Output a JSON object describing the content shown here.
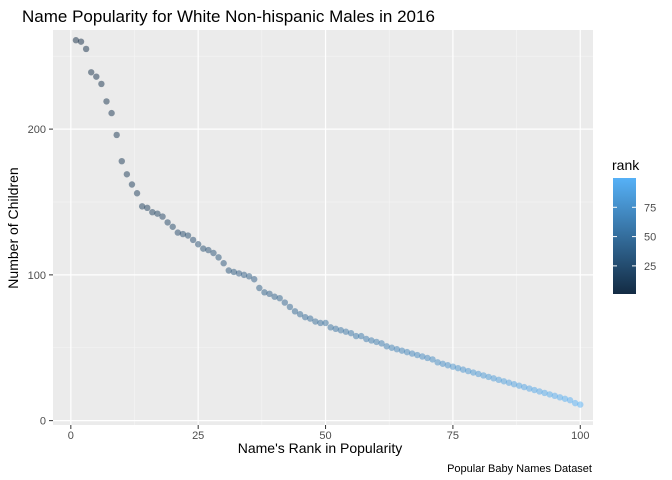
{
  "chart_data": {
    "type": "scatter",
    "title": "Name Popularity for White Non-hispanic Males in 2016",
    "xlabel": "Name's Rank in Popularity",
    "ylabel": "Number of Children",
    "caption": "Popular Baby Names Dataset",
    "xlim": [
      -3.5,
      102.5
    ],
    "ylim": [
      -3,
      268
    ],
    "x_ticks": [
      0,
      25,
      50,
      75,
      100
    ],
    "x_tick_labels": [
      "0",
      "25",
      "50",
      "75",
      "100"
    ],
    "y_ticks": [
      0,
      100,
      200
    ],
    "y_tick_labels": [
      "0",
      "100",
      "200"
    ],
    "grid": true,
    "color_scale": {
      "title": "rank",
      "low_color": "#132B43",
      "high_color": "#56B1F7",
      "domain": [
        1,
        100
      ],
      "breaks": [
        25,
        50,
        75
      ],
      "break_labels": [
        "25",
        "50",
        "75"
      ],
      "legend_position": "right"
    },
    "point_alpha": 0.5,
    "x": [
      1,
      2,
      3,
      4,
      5,
      6,
      7,
      8,
      9,
      10,
      11,
      12,
      13,
      14,
      15,
      16,
      17,
      18,
      19,
      20,
      21,
      22,
      23,
      24,
      25,
      26,
      27,
      28,
      29,
      30,
      31,
      32,
      33,
      34,
      35,
      36,
      37,
      38,
      39,
      40,
      41,
      42,
      43,
      44,
      45,
      46,
      47,
      48,
      49,
      50,
      51,
      52,
      53,
      54,
      55,
      56,
      57,
      58,
      59,
      60,
      61,
      62,
      63,
      64,
      65,
      66,
      67,
      68,
      69,
      70,
      71,
      72,
      73,
      74,
      75,
      76,
      77,
      78,
      79,
      80,
      81,
      82,
      83,
      84,
      85,
      86,
      87,
      88,
      89,
      90,
      91,
      92,
      93,
      94,
      95,
      96,
      97,
      98,
      99,
      100
    ],
    "y": [
      261,
      260,
      255,
      239,
      236,
      231,
      219,
      211,
      196,
      178,
      169,
      162,
      156,
      147,
      146,
      143,
      142,
      140,
      136,
      133,
      129,
      128,
      127,
      124,
      121,
      118,
      117,
      115,
      112,
      108,
      103,
      102,
      101,
      100,
      99,
      97,
      91,
      88,
      87,
      85,
      84,
      81,
      78,
      75,
      73,
      71,
      70,
      68,
      67,
      67,
      64,
      63,
      62,
      61,
      60,
      58,
      58,
      56,
      55,
      54,
      53,
      51,
      50,
      49,
      48,
      47,
      46,
      45,
      44,
      43,
      42,
      40,
      39,
      38,
      37,
      36,
      35,
      34,
      33,
      32,
      31,
      30,
      29,
      28,
      27,
      26,
      25,
      24,
      23,
      22,
      21,
      20,
      19,
      18,
      17,
      16,
      15,
      14,
      12,
      11
    ]
  }
}
